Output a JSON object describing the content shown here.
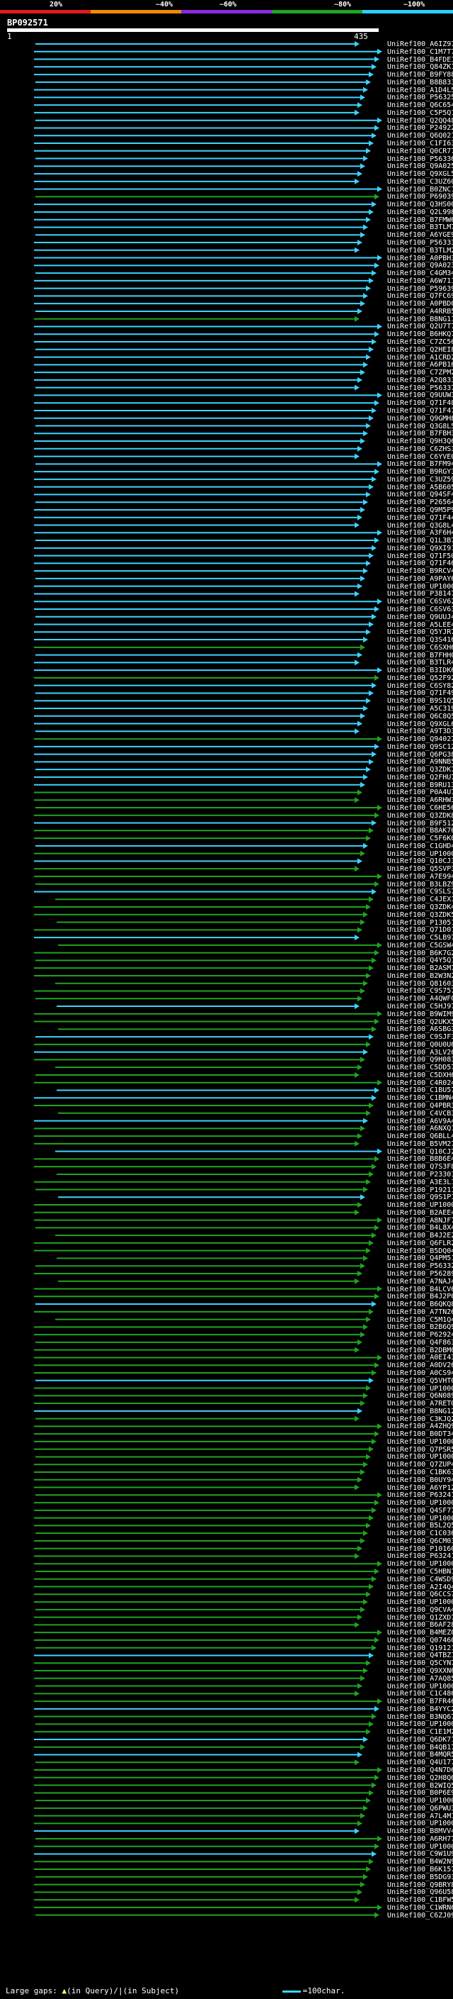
{
  "scale": {
    "labels": [
      "20%",
      "~40%",
      "~60%",
      "~80%",
      "~100%"
    ],
    "colors": [
      "#e01b1b",
      "#f28b00",
      "#8a2be2",
      "#1fa41f",
      "#2ad0ff"
    ]
  },
  "query": {
    "id": "BP092571",
    "start": "1",
    "end": "435"
  },
  "hits": [
    {
      "name": "UniRef100_A6IZ97",
      "color": "#3cd3ff"
    },
    {
      "name": "UniRef100_C1M7T7",
      "color": "#3cd3ff"
    },
    {
      "name": "UniRef100_B4FDE1",
      "color": "#3cd3ff"
    },
    {
      "name": "UniRef100_Q84ZK1",
      "color": "#3cd3ff"
    },
    {
      "name": "UniRef100_B9FY88",
      "color": "#3cd3ff"
    },
    {
      "name": "UniRef100_B8B833",
      "color": "#3cd3ff"
    },
    {
      "name": "UniRef100_A1D4L5",
      "color": "#3cd3ff"
    },
    {
      "name": "UniRef100_P56325",
      "color": "#3cd3ff"
    },
    {
      "name": "UniRef100_Q6C654",
      "color": "#3cd3ff"
    },
    {
      "name": "UniRef100_C5P5Q1",
      "color": "#3cd3ff"
    },
    {
      "name": "UniRef100_Q2QQ48",
      "color": "#3cd3ff"
    },
    {
      "name": "UniRef100_P24922",
      "color": "#3cd3ff"
    },
    {
      "name": "UniRef100_Q6Q021",
      "color": "#3cd3ff"
    },
    {
      "name": "UniRef100_C1FI63",
      "color": "#3cd3ff"
    },
    {
      "name": "UniRef100_Q0CR77",
      "color": "#3cd3ff"
    },
    {
      "name": "UniRef100_P56336",
      "color": "#3cd3ff"
    },
    {
      "name": "UniRef100_Q9A025",
      "color": "#3cd3ff"
    },
    {
      "name": "UniRef100_Q9XGL5",
      "color": "#3cd3ff"
    },
    {
      "name": "UniRef100_C3UZ60",
      "color": "#3cd3ff"
    },
    {
      "name": "UniRef100_B0ZNC1",
      "color": "#3cd3ff"
    },
    {
      "name": "UniRef100_P69039",
      "color": "#1fa41f"
    },
    {
      "name": "UniRef100_Q3HS00",
      "color": "#3cd3ff"
    },
    {
      "name": "UniRef100_Q2L998",
      "color": "#3cd3ff"
    },
    {
      "name": "UniRef100_B7FMW6",
      "color": "#3cd3ff"
    },
    {
      "name": "UniRef100_B3TLM7",
      "color": "#3cd3ff"
    },
    {
      "name": "UniRef100_A6YGE9",
      "color": "#3cd3ff"
    },
    {
      "name": "UniRef100_P56333",
      "color": "#3cd3ff"
    },
    {
      "name": "UniRef100_B3TLM2",
      "color": "#3cd3ff"
    },
    {
      "name": "UniRef100_A0PBH3",
      "color": "#3cd3ff"
    },
    {
      "name": "UniRef100_Q9A023",
      "color": "#3cd3ff"
    },
    {
      "name": "UniRef100_C4GM34",
      "color": "#3cd3ff"
    },
    {
      "name": "UniRef100_A6W711",
      "color": "#3cd3ff"
    },
    {
      "name": "UniRef100_P59639",
      "color": "#3cd3ff"
    },
    {
      "name": "UniRef100_Q7FC69",
      "color": "#3cd3ff"
    },
    {
      "name": "UniRef100_A0PBD0",
      "color": "#3cd3ff"
    },
    {
      "name": "UniRef100_A4RRB5",
      "color": "#3cd3ff"
    },
    {
      "name": "UniRef100_B8NG11",
      "color": "#1fa41f"
    },
    {
      "name": "UniRef100_Q2U7T7",
      "color": "#3cd3ff"
    },
    {
      "name": "UniRef100_B6HKQ7",
      "color": "#3cd3ff"
    },
    {
      "name": "UniRef100_C7ZC56",
      "color": "#3cd3ff"
    },
    {
      "name": "UniRef100_Q2HEI8",
      "color": "#3cd3ff"
    },
    {
      "name": "UniRef100_A1CRD2",
      "color": "#3cd3ff"
    },
    {
      "name": "UniRef100_A6PB16",
      "color": "#3cd3ff"
    },
    {
      "name": "UniRef100_C7ZPM2",
      "color": "#3cd3ff"
    },
    {
      "name": "UniRef100_A2Q833",
      "color": "#3cd3ff"
    },
    {
      "name": "UniRef100_P56337",
      "color": "#3cd3ff"
    },
    {
      "name": "UniRef100_Q9UUW3",
      "color": "#3cd3ff"
    },
    {
      "name": "UniRef100_Q71F48",
      "color": "#3cd3ff"
    },
    {
      "name": "UniRef100_Q71F47",
      "color": "#3cd3ff"
    },
    {
      "name": "UniRef100_Q9GMH8",
      "color": "#3cd3ff"
    },
    {
      "name": "UniRef100_Q3G8L5",
      "color": "#3cd3ff"
    },
    {
      "name": "UniRef100_B7FBH3",
      "color": "#3cd3ff"
    },
    {
      "name": "UniRef100_Q9H3Q6",
      "color": "#3cd3ff"
    },
    {
      "name": "UniRef100_C6ZHS3",
      "color": "#3cd3ff"
    },
    {
      "name": "UniRef100_C6YVE0",
      "color": "#3cd3ff"
    },
    {
      "name": "UniRef100_B7FM94",
      "color": "#3cd3ff"
    },
    {
      "name": "UniRef100_B9RGY3",
      "color": "#3cd3ff"
    },
    {
      "name": "UniRef100_C3UZ59",
      "color": "#3cd3ff"
    },
    {
      "name": "UniRef100_A5B605",
      "color": "#3cd3ff"
    },
    {
      "name": "UniRef100_Q94SF4",
      "color": "#3cd3ff"
    },
    {
      "name": "UniRef100_P26564",
      "color": "#3cd3ff"
    },
    {
      "name": "UniRef100_Q9M5P9",
      "color": "#3cd3ff"
    },
    {
      "name": "UniRef100_Q71F44",
      "color": "#3cd3ff"
    },
    {
      "name": "UniRef100_Q3G8L4",
      "color": "#3cd3ff"
    },
    {
      "name": "UniRef100_A3F6H4",
      "color": "#3cd3ff"
    },
    {
      "name": "UniRef100_Q1L3B7",
      "color": "#3cd3ff"
    },
    {
      "name": "UniRef100_Q9XI91",
      "color": "#3cd3ff"
    },
    {
      "name": "UniRef100_Q71F50",
      "color": "#3cd3ff"
    },
    {
      "name": "UniRef100_Q71F46",
      "color": "#3cd3ff"
    },
    {
      "name": "UniRef100_B9RCV4",
      "color": "#3cd3ff"
    },
    {
      "name": "UniRef100_A9PAY6",
      "color": "#3cd3ff"
    },
    {
      "name": "UniRef100_UP1000...",
      "color": "#3cd3ff"
    },
    {
      "name": "UniRef100_P38147",
      "color": "#3cd3ff"
    },
    {
      "name": "UniRef100_C6SV62",
      "color": "#3cd3ff"
    },
    {
      "name": "UniRef100_C6SV63",
      "color": "#3cd3ff"
    },
    {
      "name": "UniRef100_Q9UUJ4",
      "color": "#3cd3ff"
    },
    {
      "name": "UniRef100_A5LEE4",
      "color": "#3cd3ff"
    },
    {
      "name": "UniRef100_Q5YJR7",
      "color": "#3cd3ff"
    },
    {
      "name": "UniRef100_Q3S416",
      "color": "#3cd3ff"
    },
    {
      "name": "UniRef100_C6SXH6",
      "color": "#1fa41f"
    },
    {
      "name": "UniRef100_B7FHH0",
      "color": "#3cd3ff"
    },
    {
      "name": "UniRef100_B3TLR4",
      "color": "#3cd3ff"
    },
    {
      "name": "UniRef100_B3IDK6",
      "color": "#3cd3ff"
    },
    {
      "name": "UniRef100_Q52F92",
      "color": "#1fa41f"
    },
    {
      "name": "UniRef100_C6SY82",
      "color": "#3cd3ff"
    },
    {
      "name": "UniRef100_Q71F49",
      "color": "#3cd3ff"
    },
    {
      "name": "UniRef100_B9S1Q5",
      "color": "#3cd3ff"
    },
    {
      "name": "UniRef100_A5C319",
      "color": "#3cd3ff"
    },
    {
      "name": "UniRef100_Q6C8Q5",
      "color": "#3cd3ff"
    },
    {
      "name": "UniRef100_Q9XGL6",
      "color": "#3cd3ff"
    },
    {
      "name": "UniRef100_A9T3D3",
      "color": "#3cd3ff"
    },
    {
      "name": "UniRef100_Q94027",
      "color": "#1fa41f"
    },
    {
      "name": "UniRef100_Q9SC12",
      "color": "#3cd3ff"
    },
    {
      "name": "UniRef100_Q6PG38",
      "color": "#3cd3ff"
    },
    {
      "name": "UniRef100_A9NNB5",
      "color": "#3cd3ff"
    },
    {
      "name": "UniRef100_Q3ZDK7",
      "color": "#3cd3ff"
    },
    {
      "name": "UniRef100_Q2FHU7",
      "color": "#3cd3ff"
    },
    {
      "name": "UniRef100_B9RU13",
      "color": "#3cd3ff"
    },
    {
      "name": "UniRef100_P0A4U7",
      "color": "#1fa41f"
    },
    {
      "name": "UniRef100_A6RHW3",
      "color": "#1fa41f"
    },
    {
      "name": "UniRef100_C6HE56",
      "color": "#1fa41f"
    },
    {
      "name": "UniRef100_Q3ZDK8",
      "color": "#1fa41f"
    },
    {
      "name": "UniRef100_B9F512",
      "color": "#3cd3ff"
    },
    {
      "name": "UniRef100_B8AK76",
      "color": "#1fa41f"
    },
    {
      "name": "UniRef100_C5F6K0",
      "color": "#1fa41f"
    },
    {
      "name": "UniRef100_C1GHD4",
      "color": "#3cd3ff"
    },
    {
      "name": "UniRef100_UP1000...",
      "color": "#1fa41f"
    },
    {
      "name": "UniRef100_Q10CJ3",
      "color": "#3cd3ff"
    },
    {
      "name": "UniRef100_Q5SVP3",
      "color": "#1fa41f"
    },
    {
      "name": "UniRef100_A7E994",
      "color": "#1fa41f"
    },
    {
      "name": "UniRef100_B3LBZ9",
      "color": "#1fa41f"
    },
    {
      "name": "UniRef100_C9SLS7",
      "color": "#3cd3ff"
    },
    {
      "name": "UniRef100_C4JEX1",
      "color": "#1fa41f"
    },
    {
      "name": "UniRef100_Q3ZDK4",
      "color": "#1fa41f"
    },
    {
      "name": "UniRef100_Q3ZDK5",
      "color": "#1fa41f"
    },
    {
      "name": "UniRef100_P13051",
      "color": "#1fa41f"
    },
    {
      "name": "UniRef100_Q71D01",
      "color": "#1fa41f"
    },
    {
      "name": "UniRef100_C5LB97",
      "color": "#3cd3ff"
    },
    {
      "name": "UniRef100_C5GSW4",
      "color": "#1fa41f"
    },
    {
      "name": "UniRef100_B6K7G2",
      "color": "#1fa41f"
    },
    {
      "name": "UniRef100_Q4Y5Q1",
      "color": "#1fa41f"
    },
    {
      "name": "UniRef100_B2ASM7",
      "color": "#1fa41f"
    },
    {
      "name": "UniRef100_B2W3N2",
      "color": "#1fa41f"
    },
    {
      "name": "UniRef100_Q81603",
      "color": "#1fa41f"
    },
    {
      "name": "UniRef100_C9S757",
      "color": "#1fa41f"
    },
    {
      "name": "UniRef100_A4QWF0",
      "color": "#1fa41f"
    },
    {
      "name": "UniRef100_C5HJ97",
      "color": "#3cd3ff"
    },
    {
      "name": "UniRef100_B9WIM9",
      "color": "#1fa41f"
    },
    {
      "name": "UniRef100_Q2UKX5",
      "color": "#1fa41f"
    },
    {
      "name": "UniRef100_A6SBG3",
      "color": "#1fa41f"
    },
    {
      "name": "UniRef100_C9SJF3",
      "color": "#3cd3ff"
    },
    {
      "name": "UniRef100_Q0U0U6",
      "color": "#1fa41f"
    },
    {
      "name": "UniRef100_A3LV26",
      "color": "#3cd3ff"
    },
    {
      "name": "UniRef100_Q9H083",
      "color": "#1fa41f"
    },
    {
      "name": "UniRef100_C5DD57",
      "color": "#1fa41f"
    },
    {
      "name": "UniRef100_C5DXH6",
      "color": "#1fa41f"
    },
    {
      "name": "UniRef100_C4R024",
      "color": "#1fa41f"
    },
    {
      "name": "UniRef100_C1BU57",
      "color": "#3cd3ff"
    },
    {
      "name": "UniRef100_C1BMN4",
      "color": "#3cd3ff"
    },
    {
      "name": "UniRef100_Q4PBR3",
      "color": "#1fa41f"
    },
    {
      "name": "UniRef100_C4VCB3",
      "color": "#1fa41f"
    },
    {
      "name": "UniRef100_A6V9A4",
      "color": "#3cd3ff"
    },
    {
      "name": "UniRef100_A6NXQ1",
      "color": "#1fa41f"
    },
    {
      "name": "UniRef100_Q6BLL4",
      "color": "#1fa41f"
    },
    {
      "name": "UniRef100_B5VM27",
      "color": "#1fa41f"
    },
    {
      "name": "UniRef100_Q10CJ2",
      "color": "#3cd3ff"
    },
    {
      "name": "UniRef100_B8B6E4",
      "color": "#1fa41f"
    },
    {
      "name": "UniRef100_Q7S3F8",
      "color": "#1fa41f"
    },
    {
      "name": "UniRef100_P23301",
      "color": "#1fa41f"
    },
    {
      "name": "UniRef100_A3E3L1",
      "color": "#1fa41f"
    },
    {
      "name": "UniRef100_P19211",
      "color": "#1fa41f"
    },
    {
      "name": "UniRef100_Q9S1P1",
      "color": "#3cd3ff"
    },
    {
      "name": "UniRef100_UP1000...",
      "color": "#1fa41f"
    },
    {
      "name": "UniRef100_B2AEE4",
      "color": "#1fa41f"
    },
    {
      "name": "UniRef100_A8NJF7",
      "color": "#1fa41f"
    },
    {
      "name": "UniRef100_B4L8X4",
      "color": "#1fa41f"
    },
    {
      "name": "UniRef100_B4J2E2",
      "color": "#1fa41f"
    },
    {
      "name": "UniRef100_Q6FLR2",
      "color": "#1fa41f"
    },
    {
      "name": "UniRef100_B5DQ04",
      "color": "#1fa41f"
    },
    {
      "name": "UniRef100_Q4PM51",
      "color": "#1fa41f"
    },
    {
      "name": "UniRef100_P56332",
      "color": "#1fa41f"
    },
    {
      "name": "UniRef100_P56289",
      "color": "#1fa41f"
    },
    {
      "name": "UniRef100_A7NAJ4",
      "color": "#1fa41f"
    },
    {
      "name": "UniRef100_B4LCV6",
      "color": "#1fa41f"
    },
    {
      "name": "UniRef100_B4J2P0",
      "color": "#1fa41f"
    },
    {
      "name": "UniRef100_B6QKQ8",
      "color": "#3cd3ff"
    },
    {
      "name": "UniRef100_A7TN26",
      "color": "#1fa41f"
    },
    {
      "name": "UniRef100_C5M1Q4",
      "color": "#1fa41f"
    },
    {
      "name": "UniRef100_B2B6Q9",
      "color": "#1fa41f"
    },
    {
      "name": "UniRef100_P62924",
      "color": "#1fa41f"
    },
    {
      "name": "UniRef100_Q4F863",
      "color": "#1fa41f"
    },
    {
      "name": "UniRef100_B2DBM0",
      "color": "#1fa41f"
    },
    {
      "name": "UniRef100_A0EI43",
      "color": "#1fa41f"
    },
    {
      "name": "UniRef100_A0DV26",
      "color": "#1fa41f"
    },
    {
      "name": "UniRef100_A0CS94",
      "color": "#1fa41f"
    },
    {
      "name": "UniRef100_Q5VHT0",
      "color": "#3cd3ff"
    },
    {
      "name": "UniRef100_UP1000...",
      "color": "#1fa41f"
    },
    {
      "name": "UniRef100_Q6N089",
      "color": "#1fa41f"
    },
    {
      "name": "UniRef100_A7RETO",
      "color": "#1fa41f"
    },
    {
      "name": "UniRef100_B8NG12",
      "color": "#3cd3ff"
    },
    {
      "name": "UniRef100_C3KJQ2",
      "color": "#1fa41f"
    },
    {
      "name": "UniRef100_A4ZHQ9",
      "color": "#1fa41f"
    },
    {
      "name": "UniRef100_B0DT34",
      "color": "#1fa41f"
    },
    {
      "name": "UniRef100_UP1000...",
      "color": "#1fa41f"
    },
    {
      "name": "UniRef100_Q7PSR5",
      "color": "#1fa41f"
    },
    {
      "name": "UniRef100_UP1000...",
      "color": "#1fa41f"
    },
    {
      "name": "UniRef100_Q7ZUP4",
      "color": "#1fa41f"
    },
    {
      "name": "UniRef100_C1BK63",
      "color": "#1fa41f"
    },
    {
      "name": "UniRef100_B0UY94",
      "color": "#1fa41f"
    },
    {
      "name": "UniRef100_A6YP12",
      "color": "#1fa41f"
    },
    {
      "name": "UniRef100_P63241",
      "color": "#1fa41f"
    },
    {
      "name": "UniRef100_UP1000...",
      "color": "#1fa41f"
    },
    {
      "name": "UniRef100_Q4SF77",
      "color": "#1fa41f"
    },
    {
      "name": "UniRef100_UP1000...",
      "color": "#1fa41f"
    },
    {
      "name": "UniRef100_B5L2Q5",
      "color": "#1fa41f"
    },
    {
      "name": "UniRef100_C1C036",
      "color": "#1fa41f"
    },
    {
      "name": "UniRef100_Q6CM03",
      "color": "#1fa41f"
    },
    {
      "name": "UniRef100_P10160",
      "color": "#1fa41f"
    },
    {
      "name": "UniRef100_P63241-2",
      "color": "#1fa41f"
    },
    {
      "name": "UniRef100_UP1000...",
      "color": "#1fa41f"
    },
    {
      "name": "UniRef100_C5HBN1",
      "color": "#1fa41f"
    },
    {
      "name": "UniRef100_C4WSD9",
      "color": "#1fa41f"
    },
    {
      "name": "UniRef100_A2I4Q4",
      "color": "#1fa41f"
    },
    {
      "name": "UniRef100_Q6CCS7",
      "color": "#1fa41f"
    },
    {
      "name": "UniRef100_UP1000...",
      "color": "#1fa41f"
    },
    {
      "name": "UniRef100_Q9CVA4",
      "color": "#1fa41f"
    },
    {
      "name": "UniRef100_Q1ZXD7",
      "color": "#1fa41f"
    },
    {
      "name": "UniRef100_B6AF28",
      "color": "#1fa41f"
    },
    {
      "name": "UniRef100_B4MEZ0",
      "color": "#1fa41f"
    },
    {
      "name": "UniRef100_Q07460",
      "color": "#1fa41f"
    },
    {
      "name": "UniRef100_Q19121",
      "color": "#1fa41f"
    },
    {
      "name": "UniRef100_Q4TBZ1",
      "color": "#3cd3ff"
    },
    {
      "name": "UniRef100_Q5CYN7",
      "color": "#1fa41f"
    },
    {
      "name": "UniRef100_Q9XXN6",
      "color": "#1fa41f"
    },
    {
      "name": "UniRef100_A7AQ85",
      "color": "#1fa41f"
    },
    {
      "name": "UniRef100_UP1000...",
      "color": "#1fa41f"
    },
    {
      "name": "UniRef100_C1C486",
      "color": "#1fa41f"
    },
    {
      "name": "UniRef100_B7FR46",
      "color": "#1fa41f"
    },
    {
      "name": "UniRef100_B4YYC2",
      "color": "#3cd3ff"
    },
    {
      "name": "UniRef100_B3NQ67",
      "color": "#1fa41f"
    },
    {
      "name": "UniRef100_UP1000...",
      "color": "#1fa41f"
    },
    {
      "name": "UniRef100_C1E1M2",
      "color": "#1fa41f"
    },
    {
      "name": "UniRef100_Q6DK71",
      "color": "#3cd3ff"
    },
    {
      "name": "UniRef100_B4QB17",
      "color": "#1fa41f"
    },
    {
      "name": "UniRef100_B4MQR5",
      "color": "#3cd3ff"
    },
    {
      "name": "UniRef100_Q4U177",
      "color": "#1fa41f"
    },
    {
      "name": "UniRef100_Q4N7D6",
      "color": "#1fa41f"
    },
    {
      "name": "UniRef100_Q2H8Q0",
      "color": "#1fa41f"
    },
    {
      "name": "UniRef100_B2WIQ5",
      "color": "#1fa41f"
    },
    {
      "name": "UniRef100_B0P6E9",
      "color": "#1fa41f"
    },
    {
      "name": "UniRef100_UP1000...",
      "color": "#1fa41f"
    },
    {
      "name": "UniRef100_Q6PWU3",
      "color": "#1fa41f"
    },
    {
      "name": "UniRef100_A7L4M1",
      "color": "#1fa41f"
    },
    {
      "name": "UniRef100_UP1000...",
      "color": "#1fa41f"
    },
    {
      "name": "UniRef100_B8MVV4",
      "color": "#3cd3ff"
    },
    {
      "name": "UniRef100_A6RH77",
      "color": "#1fa41f"
    },
    {
      "name": "UniRef100_UP1000...",
      "color": "#1fa41f"
    },
    {
      "name": "UniRef100_C9W1U9",
      "color": "#3cd3ff"
    },
    {
      "name": "UniRef100_B4W2N9",
      "color": "#1fa41f"
    },
    {
      "name": "UniRef100_B6K157",
      "color": "#1fa41f"
    },
    {
      "name": "UniRef100_B5DG93",
      "color": "#1fa41f"
    },
    {
      "name": "UniRef100_Q9BRY8",
      "color": "#1fa41f"
    },
    {
      "name": "UniRef100_Q96U58",
      "color": "#1fa41f"
    },
    {
      "name": "UniRef100_C1BFW5",
      "color": "#1fa41f"
    },
    {
      "name": "UniRef100_C1WRN6",
      "color": "#1fa41f"
    },
    {
      "name": "UniRef100_C6ZJ09",
      "color": "#1fa41f"
    }
  ],
  "footer": {
    "large_gaps_label": "Large gaps:",
    "query_gap_desc": "(in Query)/",
    "subject_gap_desc": "(in Subject)",
    "scale_desc": "=100char."
  }
}
